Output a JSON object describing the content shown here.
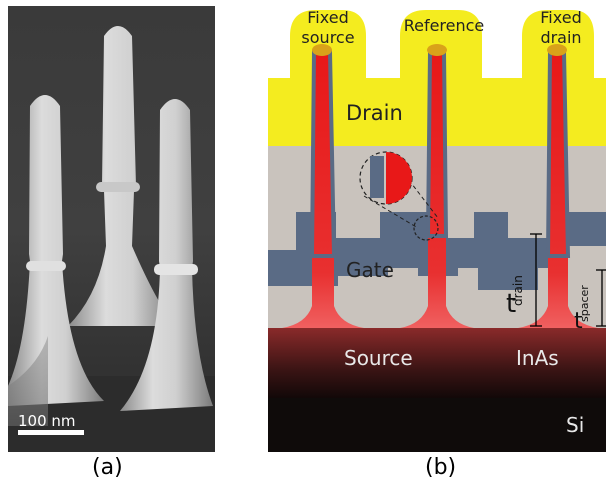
{
  "panel_a": {
    "caption": "(a)",
    "scale_bar_label": "100 nm"
  },
  "panel_b": {
    "caption": "(b)",
    "labels": {
      "fixed_source_line1": "Fixed",
      "fixed_source_line2": "source",
      "reference": "Reference",
      "fixed_drain_line1": "Fixed",
      "fixed_drain_line2": "drain",
      "drain": "Drain",
      "gate": "Gate",
      "source": "Source",
      "inas": "InAs",
      "si": "Si",
      "t_drain_main": "t",
      "t_drain_sub": "drain",
      "t_spacer_main": "t",
      "t_spacer_sub": "spacer"
    },
    "colors": {
      "metal_contact": "#f4ec1f",
      "nanowire": "#e81818",
      "spacer": "#c9c3bd",
      "gate": "#5a6b85",
      "substrate_si": "#0f0b0a",
      "source_region": "#4a1b1b"
    }
  }
}
